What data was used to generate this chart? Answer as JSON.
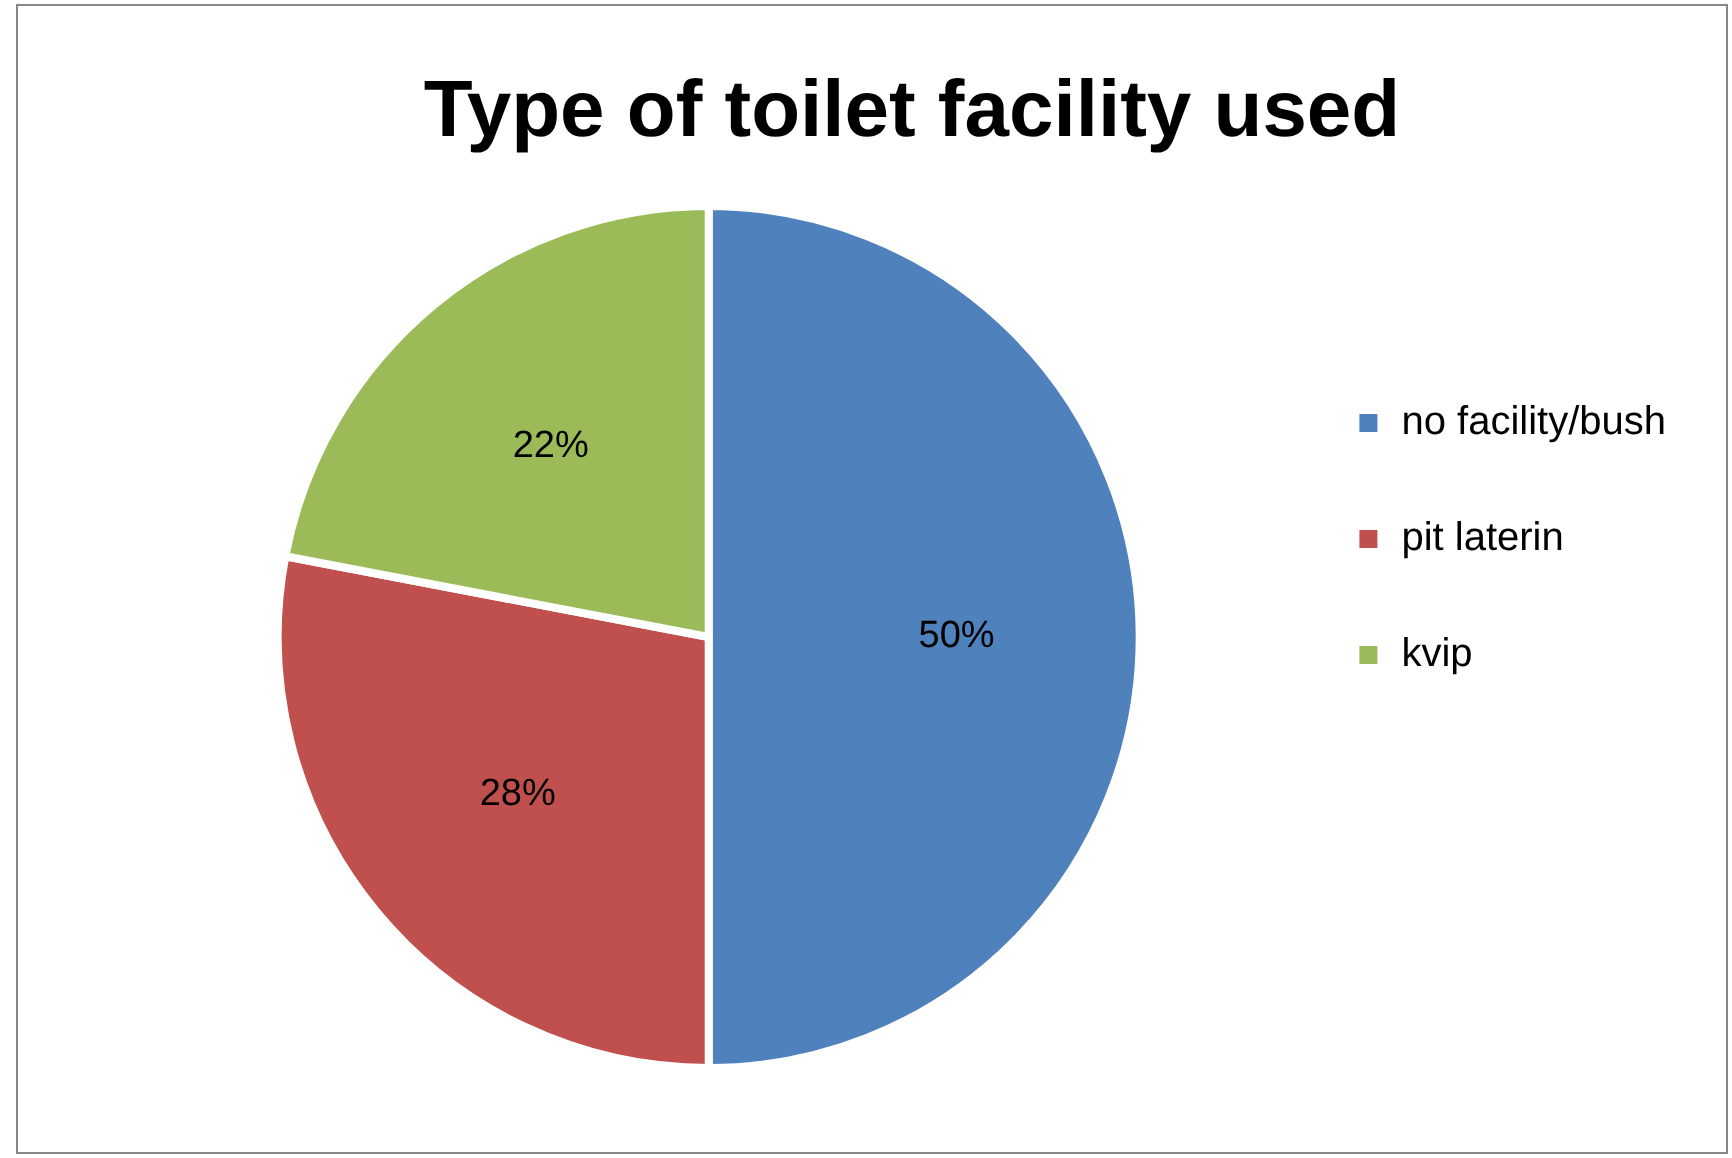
{
  "chart_data": {
    "type": "pie",
    "title": "Type of toilet facility used",
    "categories": [
      "no facility/bush",
      "pit laterin",
      "kvip"
    ],
    "values": [
      50,
      28,
      22
    ],
    "colors": [
      "#4f81bd",
      "#c0504d",
      "#9bbb59"
    ],
    "value_labels": [
      "50%",
      "28%",
      "22%"
    ],
    "legend": "right"
  }
}
